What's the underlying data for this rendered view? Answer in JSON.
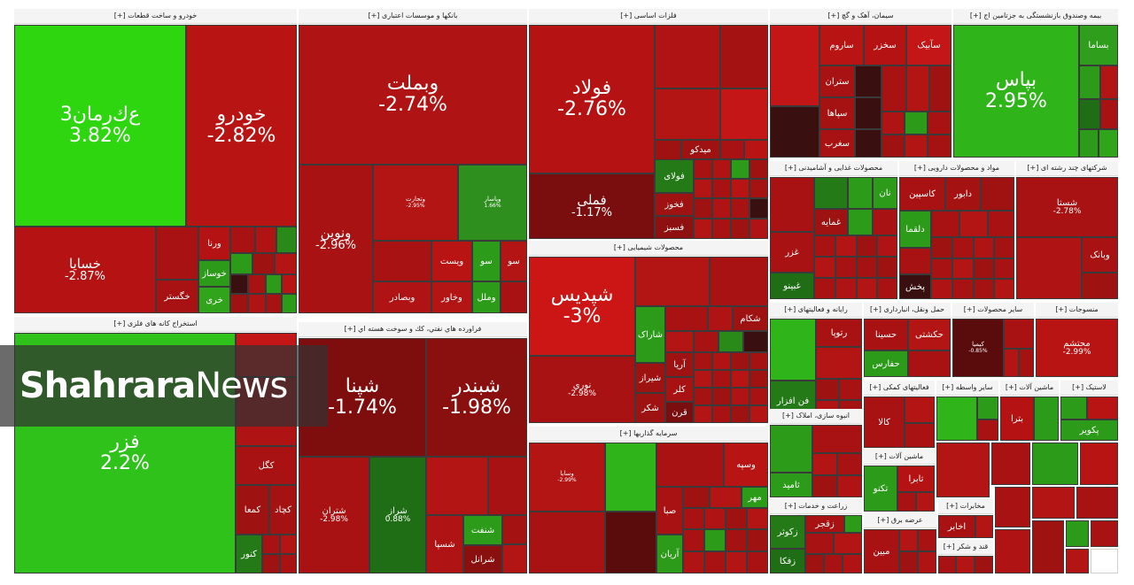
{
  "watermark": {
    "part1": "Shahrara",
    "part2": "News"
  },
  "groups": [
    {
      "title": "خودرو و ساخت قطعات [+]",
      "cells": [
        {
          "n": "خودرو",
          "p": "-2.82%",
          "c": "#b81414",
          "s": "xl"
        },
        {
          "n": "ﻉﻙﺭﻣﺎﻥ3",
          "p": "3.82%",
          "c": "#2ed60f",
          "s": "xl"
        },
        {
          "n": "خسایا",
          "p": "-2.87%",
          "c": "#b51313",
          "s": "l"
        },
        {
          "n": "ورنا",
          "p": "",
          "c": "#b51313",
          "s": "m"
        },
        {
          "n": "خگستر",
          "p": "",
          "c": "#a81212",
          "s": "m"
        },
        {
          "n": "خوساز",
          "p": "",
          "c": "#2d9b1a",
          "s": "m"
        },
        {
          "n": "خری",
          "p": "",
          "c": "#30a51c",
          "s": "m"
        }
      ]
    },
    {
      "title": "بانکها و موسسات اعتباری [+]",
      "cells": [
        {
          "n": "وبملت",
          "p": "-2.74%",
          "c": "#b01313",
          "s": "xl"
        },
        {
          "n": "ونوین",
          "p": "-2.96%",
          "c": "#a81212",
          "s": "l"
        },
        {
          "n": "وتجارت",
          "p": "-2.95%",
          "c": "#b31414",
          "s": "s"
        },
        {
          "n": "وپاسار",
          "p": "1.66%",
          "c": "#2f8f1e",
          "s": "s"
        },
        {
          "n": "ویست",
          "p": "",
          "c": "#b81414",
          "s": "m"
        },
        {
          "n": "وخاور",
          "p": "",
          "c": "#b31414",
          "s": "m"
        },
        {
          "n": "وبصادر",
          "p": "",
          "c": "#b01313",
          "s": "m"
        },
        {
          "n": "وملل",
          "p": "",
          "c": "#2d9b1a",
          "s": "m"
        }
      ]
    },
    {
      "title": "فلزات اساسی [+]",
      "cells": [
        {
          "n": "فولاد",
          "p": "-2.76%",
          "c": "#b51313",
          "s": "xl"
        },
        {
          "n": "فملی",
          "p": "-1.17%",
          "c": "#7a0d0d",
          "s": "l"
        },
        {
          "n": "فولای",
          "p": "",
          "c": "#237a17",
          "s": "m"
        },
        {
          "n": "فخوز",
          "p": "",
          "c": "#9e1212",
          "s": "m"
        },
        {
          "n": "فسبز",
          "p": "",
          "c": "#8f1010",
          "s": "m"
        },
        {
          "n": "میدکو",
          "p": "",
          "c": "#9e1212",
          "s": "m"
        }
      ]
    },
    {
      "title": "سیمان، آهک و گچ [+]",
      "cells": [
        {
          "n": "ساروم",
          "p": "",
          "c": "#b81414",
          "s": "m"
        },
        {
          "n": "سخزر",
          "p": "",
          "c": "#b51313",
          "s": "m"
        },
        {
          "n": "سآبیک",
          "p": "",
          "c": "#c41616",
          "s": "m"
        },
        {
          "n": "ستران",
          "p": "",
          "c": "#a81212",
          "s": "m"
        },
        {
          "n": "سپاها",
          "p": "",
          "c": "#a51212",
          "s": "m"
        },
        {
          "n": "سغرب",
          "p": "",
          "c": "#a81212",
          "s": "m"
        }
      ]
    },
    {
      "title": "بیمه وصندوق بازنشستگی به جزتامین اج [+]",
      "cells": [
        {
          "n": "بپاس",
          "p": "2.95%",
          "c": "#2fb51a",
          "s": "xl"
        },
        {
          "n": "بساما",
          "p": "",
          "c": "#2f9e1c",
          "s": "m"
        }
      ]
    },
    {
      "title": "استخراج کانه های فلزی [+]",
      "cells": [
        {
          "n": "فزر",
          "p": "2.2%",
          "c": "#2fc21b",
          "s": "xl"
        },
        {
          "n": "کگل",
          "p": "",
          "c": "#a81212",
          "s": "m"
        },
        {
          "n": "کچاد",
          "p": "",
          "c": "#a51212",
          "s": "m"
        },
        {
          "n": "کنور",
          "p": "",
          "c": "#237a17",
          "s": "m"
        },
        {
          "n": "کمعا",
          "p": "",
          "c": "#9e1212",
          "s": "m"
        }
      ]
    },
    {
      "title": "فراورده هاي نفتي، كك و سوخت هسته اي [+]",
      "cells": [
        {
          "n": "شپنا",
          "p": "-1.74%",
          "c": "#7e0d0d",
          "s": "xl"
        },
        {
          "n": "شبندر",
          "p": "-1.98%",
          "c": "#8a0f0f",
          "s": "xl"
        },
        {
          "n": "شتران",
          "p": "-2.98%",
          "c": "#a81212",
          "s": "m"
        },
        {
          "n": "شراز",
          "p": "0.88%",
          "c": "#1f6e15",
          "s": "m"
        },
        {
          "n": "شنفت",
          "p": "",
          "c": "#2d9b1a",
          "s": "m"
        },
        {
          "n": "شسپا",
          "p": "",
          "c": "#b01313",
          "s": "m"
        },
        {
          "n": "شرانل",
          "p": "",
          "c": "#8a0f0f",
          "s": "m"
        }
      ]
    },
    {
      "title": "محصولات شیمیایی [+]",
      "cells": [
        {
          "n": "شپدیس",
          "p": "-3%",
          "c": "#cc1616",
          "s": "xl"
        },
        {
          "n": "نوري",
          "p": "-2.98%",
          "c": "#a81212",
          "s": "m"
        },
        {
          "n": "شاراک",
          "p": "",
          "c": "#2d9b1a",
          "s": "m"
        },
        {
          "n": "شیراز",
          "p": "",
          "c": "#9e1212",
          "s": "m"
        },
        {
          "n": "آریا",
          "p": "",
          "c": "#9e1212",
          "s": "m"
        },
        {
          "n": "کلر",
          "p": "",
          "c": "#a81212",
          "s": "m"
        },
        {
          "n": "قرن",
          "p": "",
          "c": "#7a0d0d",
          "s": "m"
        },
        {
          "n": "شکام",
          "p": "",
          "c": "#9e1212",
          "s": "m"
        }
      ]
    },
    {
      "title": "سرمایه گذاریها [+]",
      "cells": [
        {
          "n": "وسپه",
          "p": "",
          "c": "#b81414",
          "s": "m"
        },
        {
          "n": "وسایا",
          "p": "-2.99%",
          "c": "#b31414",
          "s": "s"
        },
        {
          "n": "صبا",
          "p": "",
          "c": "#a81212",
          "s": "m"
        },
        {
          "n": "آریان",
          "p": "",
          "c": "#2d9b1a",
          "s": "m"
        },
        {
          "n": "مهر",
          "p": "",
          "c": "#2d9b1a",
          "s": "m"
        }
      ]
    },
    {
      "title": "محصولات غذایی و آشامیدنی [+]",
      "cells": [
        {
          "n": "غزر",
          "p": "",
          "c": "#a81212",
          "s": "m"
        },
        {
          "n": "غبینو",
          "p": "",
          "c": "#1f6e15",
          "s": "m"
        },
        {
          "n": "غمایه",
          "p": "",
          "c": "#9e1212",
          "s": "m"
        },
        {
          "n": "نان",
          "p": "",
          "c": "#2d9b1a",
          "s": "m"
        }
      ]
    },
    {
      "title": "مواد و محصولات دارویی [+]",
      "cells": [
        {
          "n": "کاسپین",
          "p": "",
          "c": "#a81212",
          "s": "m"
        },
        {
          "n": "دابور",
          "p": "",
          "c": "#a51212",
          "s": "m"
        },
        {
          "n": "دلقما",
          "p": "",
          "c": "#2d9b1a",
          "s": "m"
        },
        {
          "n": "پخش",
          "p": "",
          "c": "#3a0f0f",
          "s": "m"
        }
      ]
    },
    {
      "title": "شرکتهای چند رشته ای [+]",
      "cells": [
        {
          "n": "شستا",
          "p": "-2.78%",
          "c": "#a81212",
          "s": "m"
        },
        {
          "n": "وبانک",
          "p": "",
          "c": "#a81212",
          "s": "m"
        }
      ]
    },
    {
      "title": "رایانه و فعالیتهای [+]",
      "cells": [
        {
          "n": "رتوپا",
          "p": "",
          "c": "#a81212",
          "s": "m"
        },
        {
          "n": "فن افزار",
          "p": "",
          "c": "#237a17",
          "s": "m"
        }
      ]
    },
    {
      "title": "حمل ونقل، انبارداری [+]",
      "cells": [
        {
          "n": "حسینا",
          "p": "",
          "c": "#a81212",
          "s": "m"
        },
        {
          "n": "حکشتی",
          "p": "",
          "c": "#b31414",
          "s": "m"
        },
        {
          "n": "حفارس",
          "p": "",
          "c": "#2d9b1a",
          "s": "m"
        }
      ]
    },
    {
      "title": "سایر محصولات [+]",
      "cells": [
        {
          "n": "کیمیا",
          "p": "-0.85%",
          "c": "#5a0c0c",
          "s": "s"
        }
      ]
    },
    {
      "title": "منسوجات [+]",
      "cells": [
        {
          "n": "محتشم",
          "p": "-2.99%",
          "c": "#b81414",
          "s": "m"
        }
      ]
    },
    {
      "title": "فعالیتهای کمکی [+]",
      "cells": [
        {
          "n": "کالا",
          "p": "",
          "c": "#a81212",
          "s": "m"
        }
      ]
    },
    {
      "title": "سایر واسطه [+]",
      "cells": []
    },
    {
      "title": "ماشین آلات [+]",
      "cells": [
        {
          "n": "بترا",
          "p": "",
          "c": "#b51313",
          "s": "m"
        }
      ]
    },
    {
      "title": "لاستیک [+]",
      "cells": [
        {
          "n": "پکویر",
          "p": "",
          "c": "#2d9b1a",
          "s": "m"
        }
      ]
    },
    {
      "title": "انبوه سازی، املاک [+]",
      "cells": [
        {
          "n": "ثامید",
          "p": "",
          "c": "#2d9b1a",
          "s": "m"
        }
      ]
    },
    {
      "title": "ماشین آلات [+]",
      "cells": [
        {
          "n": "تکنو",
          "p": "",
          "c": "#2d9b1a",
          "s": "m"
        },
        {
          "n": "تابرا",
          "p": "",
          "c": "#b51313",
          "s": "m"
        }
      ]
    },
    {
      "title": "زراعت و خدمات [+]",
      "cells": [
        {
          "n": "زکوثر",
          "p": "",
          "c": "#237a17",
          "s": "m"
        },
        {
          "n": "زفکا",
          "p": "",
          "c": "#1f6e15",
          "s": "m"
        },
        {
          "n": "زقجر",
          "p": "",
          "c": "#a81212",
          "s": "m"
        }
      ]
    },
    {
      "title": "عرضه برق [+]",
      "cells": [
        {
          "n": "مبین",
          "p": "",
          "c": "#a81212",
          "s": "m"
        }
      ]
    },
    {
      "title": "قند و شکر [+]",
      "cells": []
    },
    {
      "title": "مخابرات [+]",
      "cells": [
        {
          "n": "اخابر",
          "p": "",
          "c": "#a81212",
          "s": "m"
        }
      ]
    }
  ]
}
